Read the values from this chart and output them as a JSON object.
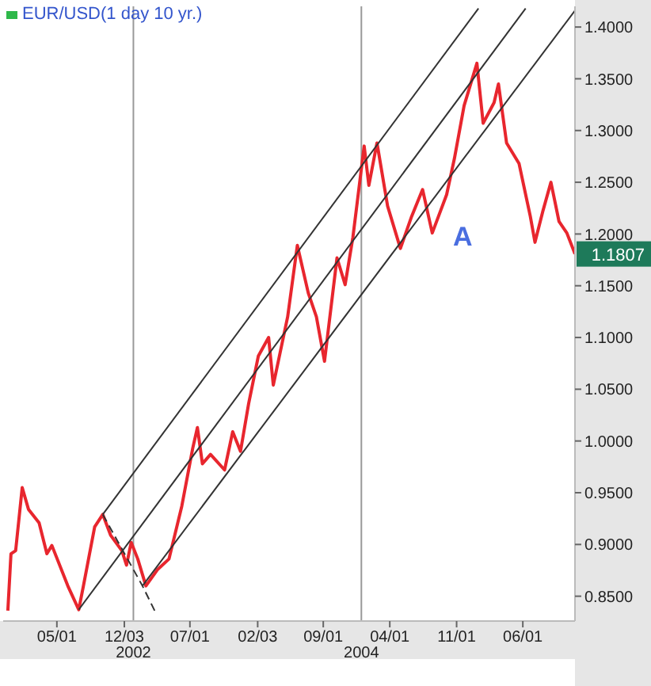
{
  "chart_data": {
    "type": "line",
    "title": "EUR/USD(1 day 10 yr.)",
    "marker": "none",
    "grid": false,
    "legend": false,
    "xlim": [
      "2000-11-10",
      "2005-11-15"
    ],
    "xticks": [
      {
        "value": "2001-05-01",
        "label": "05/01"
      },
      {
        "value": "2001-12-03",
        "label": "12/03"
      },
      {
        "value": "2002-07-01",
        "label": "07/01"
      },
      {
        "value": "2003-02-03",
        "label": "02/03"
      },
      {
        "value": "2003-09-01",
        "label": "09/01"
      },
      {
        "value": "2004-04-01",
        "label": "04/01"
      },
      {
        "value": "2004-11-01",
        "label": "11/01"
      },
      {
        "value": "2005-06-01",
        "label": "06/01"
      }
    ],
    "ylim": [
      0.826,
      1.42
    ],
    "yticks": [
      {
        "value": 0.85,
        "label": "0.8500"
      },
      {
        "value": 0.9,
        "label": "0.9000"
      },
      {
        "value": 0.95,
        "label": "0.9500"
      },
      {
        "value": 1.0,
        "label": "1.0000"
      },
      {
        "value": 1.05,
        "label": "1.0500"
      },
      {
        "value": 1.1,
        "label": "1.1000"
      },
      {
        "value": 1.15,
        "label": "1.1500"
      },
      {
        "value": 1.2,
        "label": "1.2000"
      },
      {
        "value": 1.25,
        "label": "1.2500"
      },
      {
        "value": 1.3,
        "label": "1.3000"
      },
      {
        "value": 1.35,
        "label": "1.3500"
      },
      {
        "value": 1.4,
        "label": "1.4000"
      }
    ],
    "ref_lines": [
      {
        "axis": "x",
        "value": "2002-01-01",
        "label": "2002",
        "color": "#999999"
      },
      {
        "axis": "x",
        "value": "2004-01-01",
        "label": "2004",
        "color": "#999999"
      }
    ],
    "annotations": [
      "A",
      {
        "text": "1.1807",
        "x": "2005-11-15",
        "y": 1.1807
      }
    ],
    "series": [
      {
        "color": "#e8262e",
        "x": [
          "2000-11-25",
          "2000-12-05",
          "2000-12-20",
          "2001-01-10",
          "2001-01-30",
          "2001-03-05",
          "2001-03-30",
          "2001-04-15",
          "2001-06-05",
          "2001-07-10",
          "2001-07-25",
          "2001-08-30",
          "2001-09-25",
          "2001-10-20",
          "2001-11-25",
          "2001-12-10",
          "2001-12-25",
          "2002-01-15",
          "2002-02-10",
          "2002-03-20",
          "2002-04-25",
          "2002-06-05",
          "2002-07-10",
          "2002-07-25",
          "2002-08-10",
          "2002-09-05",
          "2002-10-20",
          "2002-11-15",
          "2002-12-10",
          "2003-01-05",
          "2003-02-05",
          "2003-03-10",
          "2003-03-25",
          "2003-05-10",
          "2003-06-10",
          "2003-07-15",
          "2003-08-10",
          "2003-09-05",
          "2003-10-15",
          "2003-11-10",
          "2003-12-05",
          "2004-01-10",
          "2004-01-25",
          "2004-02-20",
          "2004-03-25",
          "2004-05-05",
          "2004-06-10",
          "2004-07-15",
          "2004-08-15",
          "2004-09-30",
          "2004-10-25",
          "2004-11-25",
          "2005-01-05",
          "2005-01-25",
          "2005-03-01",
          "2005-03-15",
          "2005-04-10",
          "2005-05-20",
          "2005-06-25",
          "2005-07-10",
          "2005-08-05",
          "2005-08-30",
          "2005-09-25",
          "2005-10-20",
          "2005-11-15"
        ],
        "values": [
          0.836,
          0.891,
          0.894,
          0.955,
          0.934,
          0.921,
          0.891,
          0.899,
          0.86,
          0.837,
          0.86,
          0.917,
          0.929,
          0.909,
          0.894,
          0.88,
          0.902,
          0.886,
          0.86,
          0.876,
          0.886,
          0.937,
          0.993,
          1.013,
          0.978,
          0.987,
          0.972,
          1.009,
          0.99,
          1.036,
          1.082,
          1.1,
          1.054,
          1.12,
          1.189,
          1.143,
          1.12,
          1.077,
          1.177,
          1.151,
          1.197,
          1.285,
          1.247,
          1.288,
          1.227,
          1.186,
          1.217,
          1.243,
          1.201,
          1.238,
          1.273,
          1.324,
          1.365,
          1.307,
          1.327,
          1.345,
          1.288,
          1.268,
          1.217,
          1.192,
          1.223,
          1.25,
          1.212,
          1.201,
          1.1807
        ]
      },
      {
        "type": "line",
        "color": "#333333",
        "x": [
          "2001-09-25",
          "2005-01-10"
        ],
        "values": [
          0.929,
          1.418
        ]
      },
      {
        "type": "line",
        "color": "#333333",
        "x": [
          "2001-07-10",
          "2005-06-10"
        ],
        "values": [
          0.837,
          1.418
        ]
      },
      {
        "type": "line",
        "color": "#333333",
        "x": [
          "2002-01-30",
          "2005-11-15"
        ],
        "values": [
          0.86,
          1.416
        ]
      },
      {
        "type": "line",
        "color": "#333333",
        "line_style": "dashed",
        "x": [
          "2001-09-25",
          "2002-01-30",
          "2002-03-15"
        ],
        "values": [
          0.929,
          0.86,
          0.833
        ]
      }
    ]
  }
}
